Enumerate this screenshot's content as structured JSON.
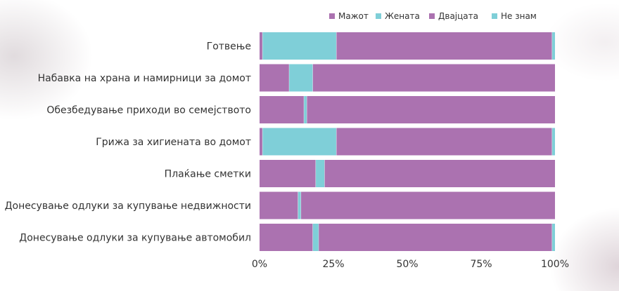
{
  "chart_data": {
    "type": "bar",
    "orientation": "horizontal",
    "stacked": true,
    "categories": [
      "Готвење",
      "Набавка на храна и намирници за домот",
      "Обезбедување приходи во семејството",
      "Грижа за хигиената во домот",
      "Плаќање сметки",
      "Донесување одлуки за купување недвижности",
      "Донесување одлуки за купување автомобил"
    ],
    "series": [
      {
        "name": "Мажот",
        "color": "#ab72b0",
        "values": [
          1,
          10,
          15,
          1,
          19,
          13,
          18
        ]
      },
      {
        "name": "Жената",
        "color": "#7fcfd8",
        "values": [
          25,
          8,
          1,
          25,
          3,
          1,
          2
        ]
      },
      {
        "name": "Двајцата",
        "color": "#ab72b0",
        "values": [
          73,
          82,
          84,
          73,
          78,
          86,
          79
        ]
      },
      {
        "name": "Не знам",
        "color": "#7fcfd8",
        "values": [
          1,
          0,
          0,
          1,
          0,
          0,
          1
        ]
      }
    ],
    "x_ticks": [
      "0%",
      "25%",
      "50%",
      "75%",
      "100%"
    ],
    "xlim": [
      0,
      100
    ],
    "legend_position": "top-right",
    "grid": false
  }
}
